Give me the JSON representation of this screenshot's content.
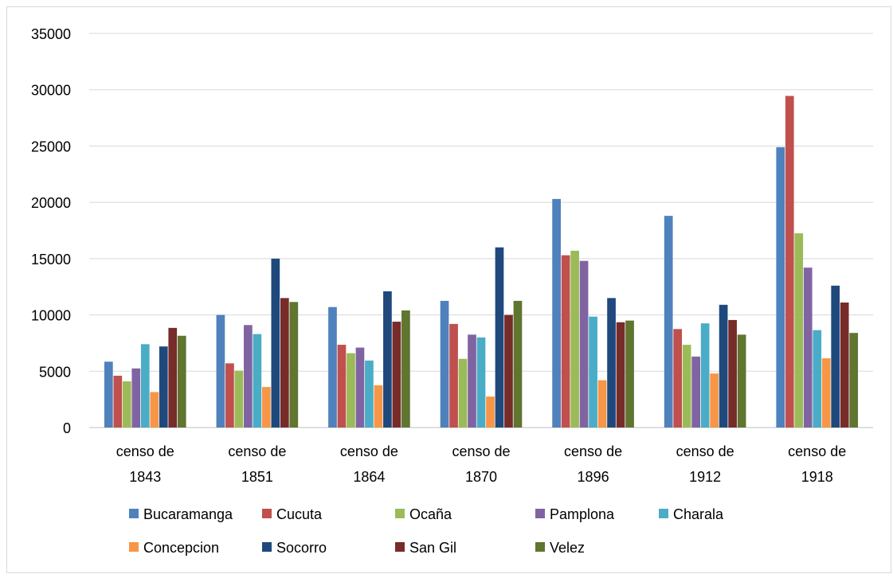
{
  "chart_data": {
    "type": "bar",
    "title": "",
    "xlabel": "",
    "ylabel": "",
    "ylim": [
      0,
      35000
    ],
    "yticks": [
      0,
      5000,
      10000,
      15000,
      20000,
      25000,
      30000,
      35000
    ],
    "grid": true,
    "legend_position": "bottom",
    "categories": [
      [
        "censo de",
        "1843"
      ],
      [
        "censo de",
        "1851"
      ],
      [
        "censo de",
        "1864"
      ],
      [
        "censo de",
        "1870"
      ],
      [
        "censo de",
        "1896"
      ],
      [
        "censo de",
        "1912"
      ],
      [
        "censo de",
        "1918"
      ]
    ],
    "series": [
      {
        "name": "Bucaramanga",
        "color": "#4F81BD",
        "values": [
          5850,
          10000,
          10700,
          11250,
          20300,
          18800,
          24900
        ]
      },
      {
        "name": "Cucuta",
        "color": "#C0504D",
        "values": [
          4600,
          5700,
          7350,
          9200,
          15300,
          8750,
          29450
        ]
      },
      {
        "name": "Ocaña",
        "color": "#9BBB59",
        "values": [
          4100,
          5050,
          6600,
          6100,
          15700,
          7350,
          17250
        ]
      },
      {
        "name": "Pamplona",
        "color": "#8064A2",
        "values": [
          5250,
          9100,
          7100,
          8250,
          14800,
          6300,
          14200
        ]
      },
      {
        "name": "Charala",
        "color": "#4BACC6",
        "values": [
          7400,
          8300,
          5950,
          8000,
          9850,
          9250,
          8650
        ]
      },
      {
        "name": "Concepcion",
        "color": "#F79646",
        "values": [
          3150,
          3600,
          3750,
          2750,
          4200,
          4800,
          6150
        ]
      },
      {
        "name": "Socorro",
        "color": "#1F497D",
        "values": [
          7200,
          15000,
          12100,
          16000,
          11500,
          10900,
          12600
        ]
      },
      {
        "name": "San Gil",
        "color": "#772C2A",
        "values": [
          8850,
          11500,
          9400,
          10000,
          9350,
          9550,
          11100
        ]
      },
      {
        "name": "Velez",
        "color": "#5F7530",
        "values": [
          8150,
          11150,
          10400,
          11250,
          9500,
          8250,
          8400
        ]
      }
    ]
  }
}
